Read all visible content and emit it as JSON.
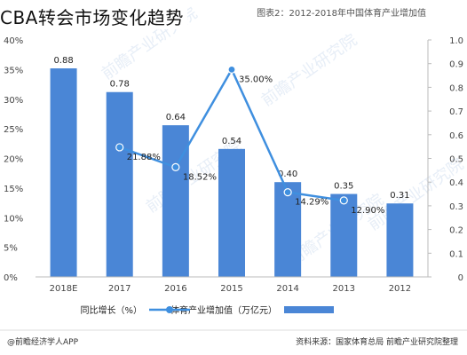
{
  "caption": "CBA转会市场变化趋势",
  "colors": {
    "bar": "#4a86d6",
    "line": "#3f8fdf",
    "axis": "#bbbbbb"
  },
  "chart_data": {
    "type": "bar",
    "title": "图表2：2012-2018年中国体育产业增加值",
    "categories": [
      "2018E",
      "2017",
      "2016",
      "2015",
      "2014",
      "2013",
      "2012"
    ],
    "series": [
      {
        "name": "体育产业增加值（万亿元）",
        "type": "bar",
        "axis": "right",
        "values": [
          0.88,
          0.78,
          0.64,
          0.54,
          0.4,
          0.35,
          0.31
        ],
        "labels": [
          "0.88",
          "0.78",
          "0.64",
          "0.54",
          "0.40",
          "0.35",
          "0.31"
        ]
      },
      {
        "name": "同比增长（%）",
        "type": "line",
        "axis": "left",
        "values": [
          null,
          21.88,
          18.52,
          35.0,
          14.29,
          12.9,
          null
        ],
        "labels": [
          null,
          "21.88%",
          "18.52%",
          "35.00%",
          "14.29%",
          "12.90%",
          null
        ]
      }
    ],
    "left_axis": {
      "ticks": [
        "40%",
        "35%",
        "30%",
        "25%",
        "20%",
        "15%",
        "10%",
        "5%",
        "0%"
      ],
      "ylim": [
        0,
        40
      ]
    },
    "right_axis": {
      "ticks": [
        "1.0",
        "0.9",
        "0.8",
        "0.7",
        "0.6",
        "0.5",
        "0.4",
        "0.3",
        "0.2",
        "0.1",
        "0"
      ],
      "ylim": [
        0,
        1.0
      ]
    },
    "grid": false,
    "legend": "bottom",
    "source": "资料来源：国家体育总局 前瞻产业研究院整理",
    "credit": "@前瞻经济学人APP",
    "watermark": "前瞻产业研究院"
  }
}
